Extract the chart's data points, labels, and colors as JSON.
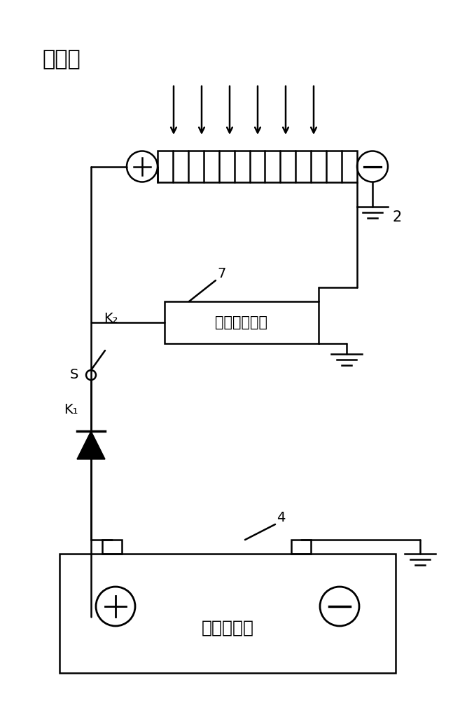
{
  "bg_color": "#ffffff",
  "line_color": "#000000",
  "sunlight_label": "太阳光",
  "bms_label": "电池管理系统",
  "battery_label": "启动蓄电池",
  "label_2": "2",
  "label_4": "4",
  "label_7": "7",
  "label_K1": "K₁",
  "label_K2": "K₂",
  "label_S": "S"
}
